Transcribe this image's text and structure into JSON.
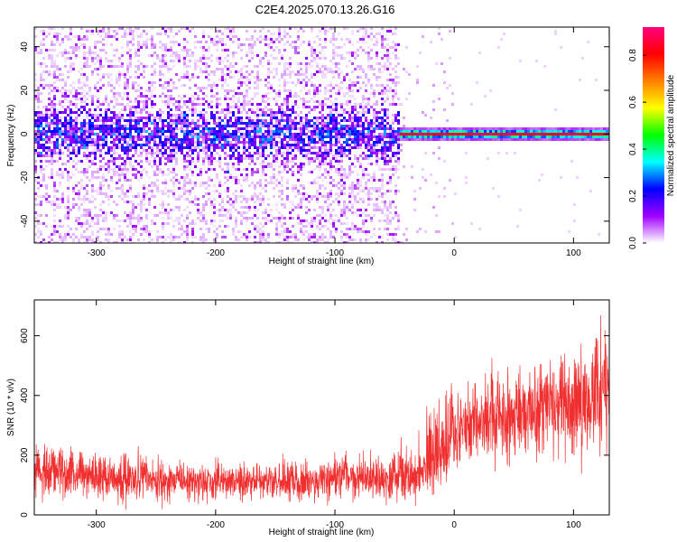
{
  "title": "C2E4.2025.070.13.26.G16",
  "colors": {
    "snr_line": "#f03030",
    "axis": "#000000",
    "background": "#ffffff"
  },
  "chart_data": [
    {
      "type": "heatmap",
      "title": "C2E4.2025.070.13.26.G16",
      "xlabel": "Height of straight line (km)",
      "ylabel": "Frequency (Hz)",
      "xlim": [
        -352,
        130
      ],
      "ylim": [
        -50,
        49
      ],
      "x_ticks": [
        -300,
        -200,
        -100,
        0,
        100
      ],
      "y_ticks": [
        -40,
        -20,
        0,
        20,
        40
      ],
      "x_tick_labels": [
        "-300",
        "-200",
        "-100",
        "0",
        "100"
      ],
      "y_tick_labels": [
        "-40",
        "-20",
        "0",
        "20",
        "40"
      ],
      "structure": {
        "transition_km": -45,
        "noisy_region": {
          "x_range": [
            -352,
            -45
          ],
          "core_band_hz": [
            -12,
            12
          ],
          "peak_amplitude": 0.3
        },
        "tone_region": {
          "x_range": [
            -45,
            130
          ],
          "band_hz": [
            -2.5,
            2.5
          ],
          "peak_amplitude": 0.9
        }
      },
      "colorbar": {
        "label": "Normalized spectral amplitude",
        "range": [
          0.0,
          0.92
        ],
        "ticks": [
          0.0,
          0.2,
          0.4,
          0.6,
          0.8
        ],
        "tick_labels": [
          "0.0",
          "0.2",
          "0.4",
          "0.6",
          "0.8"
        ],
        "stops": [
          "#ffffff",
          "#a000ff",
          "#0000ff",
          "#00ffff",
          "#00ff00",
          "#ffff00",
          "#ff8000",
          "#ff0000",
          "#ff0080"
        ]
      }
    },
    {
      "type": "line",
      "xlabel": "Height of straight line (km)",
      "ylabel": "SNR (10 * v/v)",
      "xlim": [
        -352,
        130
      ],
      "ylim": [
        0,
        720
      ],
      "x_ticks": [
        -300,
        -200,
        -100,
        0,
        100
      ],
      "y_ticks": [
        0,
        200,
        400,
        600
      ],
      "x_tick_labels": [
        "-300",
        "-200",
        "-100",
        "0",
        "100"
      ],
      "y_tick_labels": [
        "0",
        "200",
        "400",
        "600"
      ],
      "series": [
        {
          "name": "SNR",
          "x": [
            -352,
            -330,
            -300,
            -260,
            -220,
            -180,
            -140,
            -100,
            -60,
            -30,
            -20,
            -10,
            0,
            20,
            40,
            60,
            80,
            100,
            130
          ],
          "mean": [
            150,
            145,
            130,
            120,
            110,
            110,
            112,
            118,
            130,
            140,
            200,
            210,
            290,
            310,
            330,
            340,
            370,
            380,
            420
          ],
          "spread": [
            70,
            70,
            65,
            60,
            55,
            55,
            55,
            60,
            70,
            75,
            110,
            120,
            120,
            120,
            120,
            130,
            130,
            140,
            150
          ]
        }
      ]
    }
  ]
}
